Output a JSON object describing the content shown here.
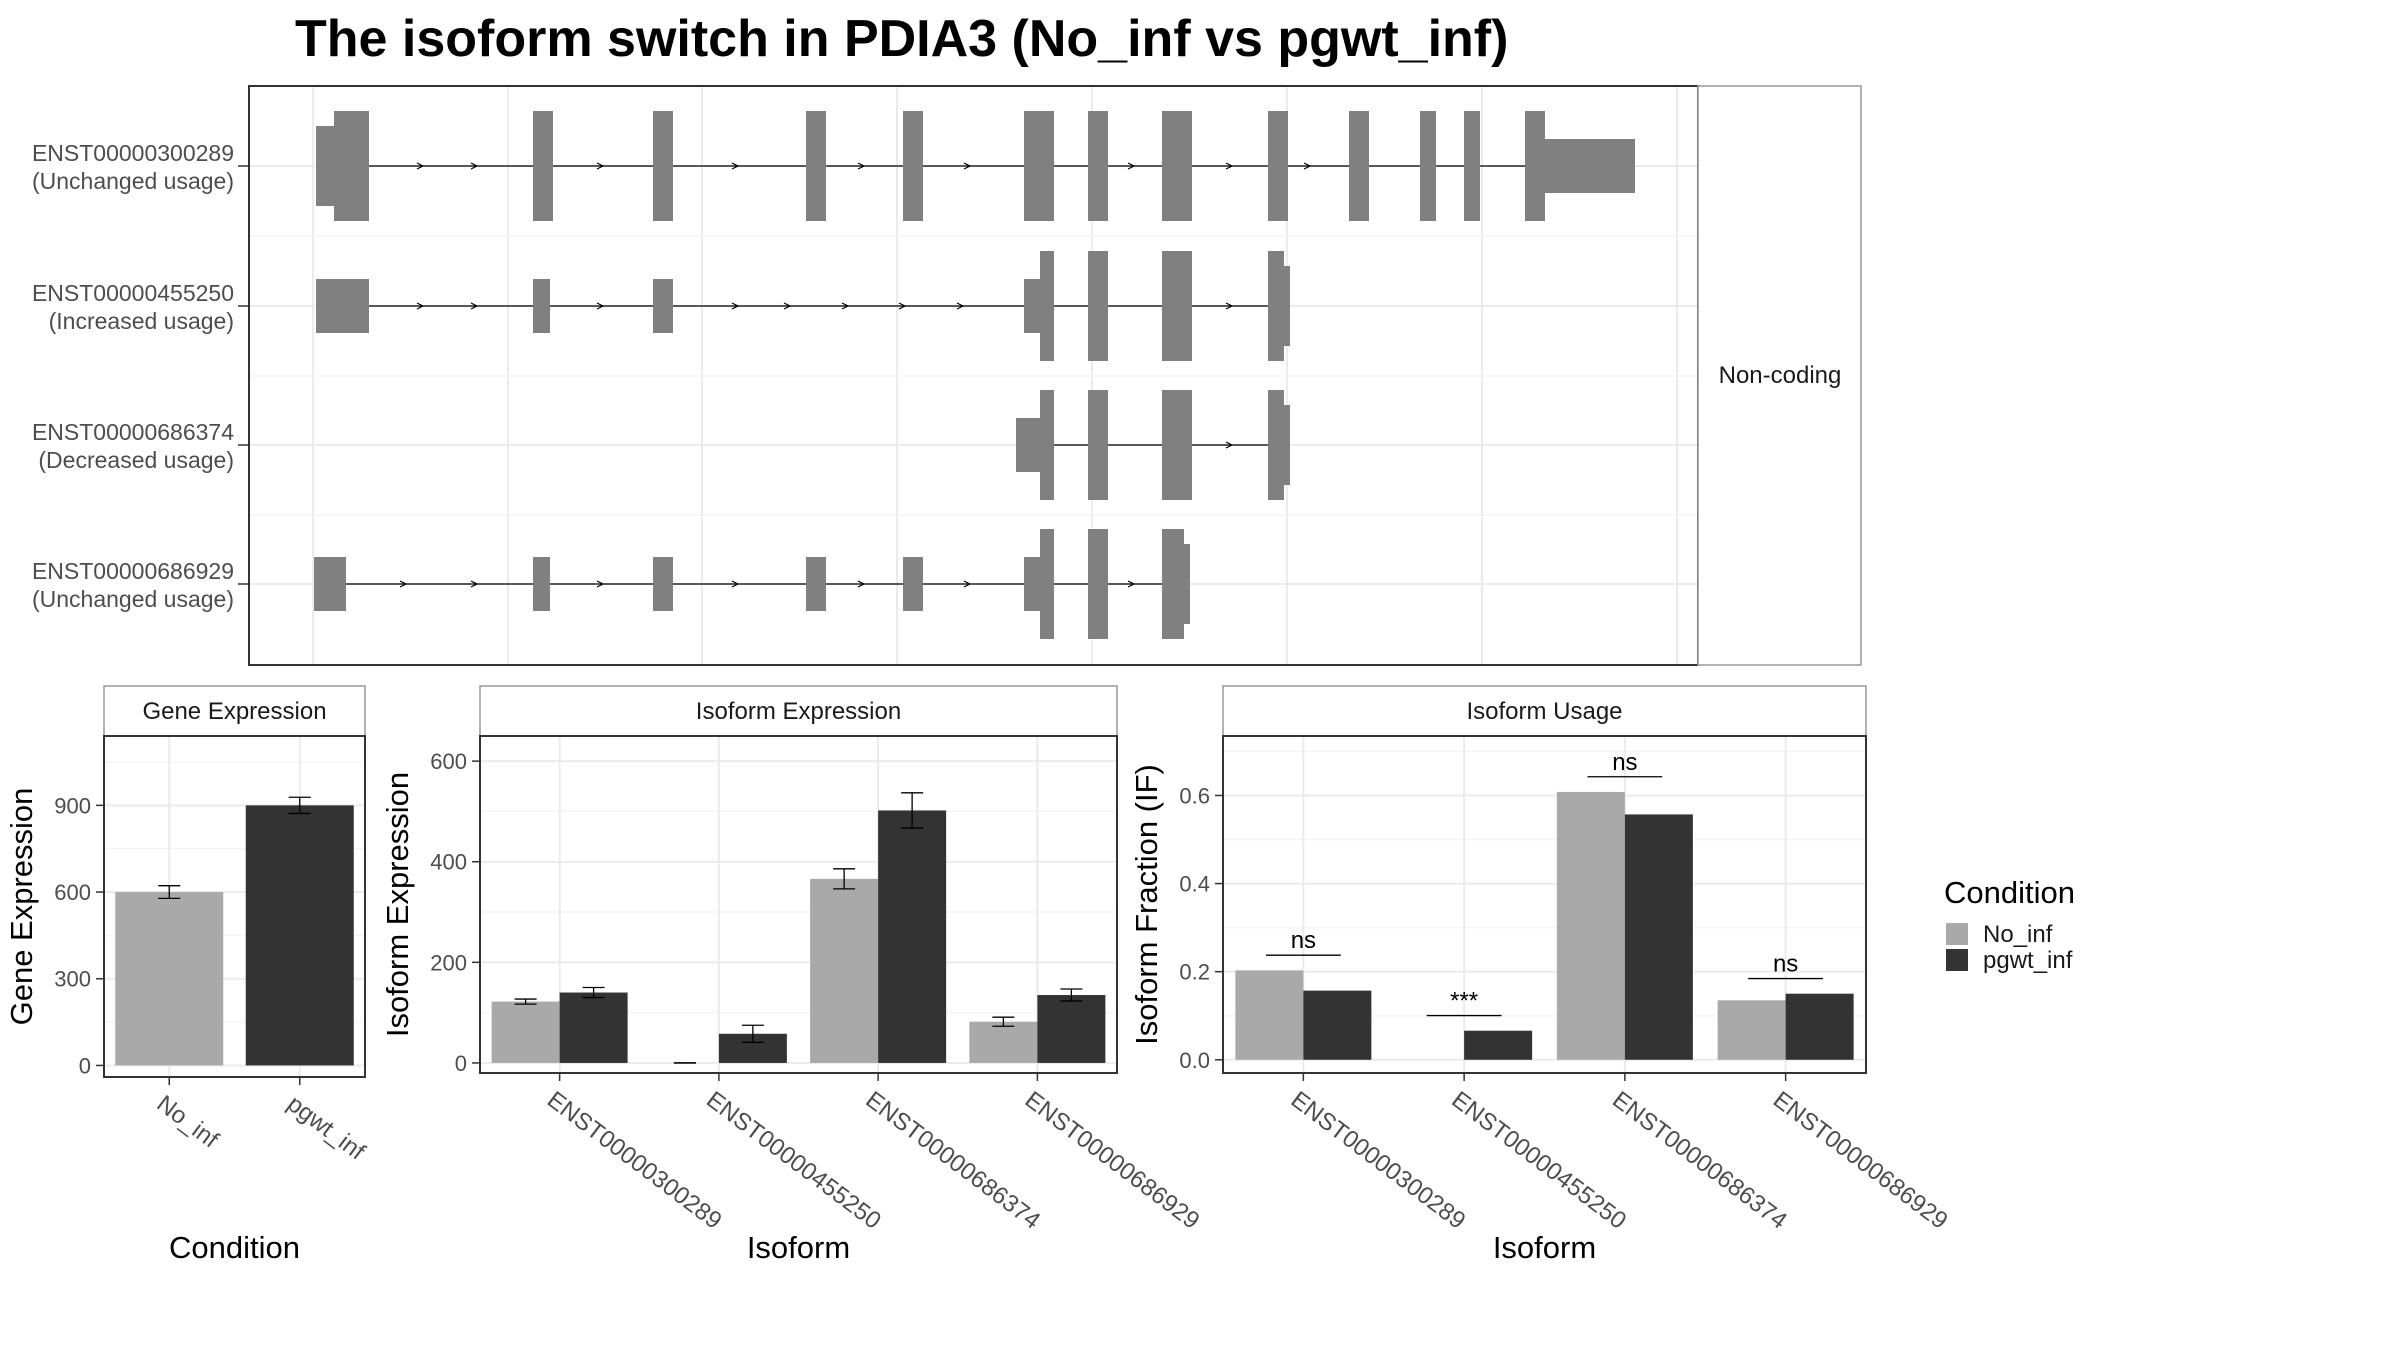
{
  "title": "The isoform switch in PDIA3 (No_inf vs pgwt_inf)",
  "colors": {
    "No_inf": "#a9a9a9",
    "pgwt_inf": "#333333",
    "exon": "#808080",
    "grid": "#ebebeb",
    "panel_border": "#333333",
    "strip_border": "#666666"
  },
  "legend": {
    "title": "Condition",
    "items": [
      {
        "label": "No_inf",
        "color": "#a9a9a9"
      },
      {
        "label": "pgwt_inf",
        "color": "#333333"
      }
    ]
  },
  "chart_data": [
    {
      "type": "gene_structure",
      "facet_label": "Non-coding",
      "transcripts": [
        {
          "id": "ENST00000300289",
          "status": "(Unchanged usage)"
        },
        {
          "id": "ENST00000455250",
          "status": "(Increased usage)"
        },
        {
          "id": "ENST00000686374",
          "status": "(Decreased usage)"
        },
        {
          "id": "ENST00000686929",
          "status": "(Unchanged usage)"
        }
      ]
    },
    {
      "type": "bar",
      "title": "Gene Expression",
      "xlabel": "Condition",
      "ylabel": "Gene Expression",
      "categories": [
        "No_inf",
        "pgwt_inf"
      ],
      "values": [
        600,
        900
      ],
      "errors": [
        22,
        28
      ],
      "ylim": [
        -40,
        1140
      ],
      "yticks": [
        0,
        300,
        600,
        900
      ]
    },
    {
      "type": "bar",
      "title": "Isoform Expression",
      "xlabel": "Isoform",
      "ylabel": "Isoform Expression",
      "categories": [
        "ENST00000300289",
        "ENST00000455250",
        "ENST00000686374",
        "ENST00000686929"
      ],
      "series": [
        {
          "name": "No_inf",
          "values": [
            122,
            0,
            366,
            82
          ],
          "errors": [
            5,
            0,
            20,
            9
          ]
        },
        {
          "name": "pgwt_inf",
          "values": [
            140,
            58,
            502,
            135
          ],
          "errors": [
            10,
            17,
            35,
            12
          ]
        }
      ],
      "ylim": [
        -20,
        650
      ],
      "yticks": [
        0,
        200,
        400,
        600
      ]
    },
    {
      "type": "bar",
      "title": "Isoform Usage",
      "xlabel": "Isoform",
      "ylabel": "Isoform Fraction (IF)",
      "categories": [
        "ENST00000300289",
        "ENST00000455250",
        "ENST00000686374",
        "ENST00000686929"
      ],
      "series": [
        {
          "name": "No_inf",
          "values": [
            0.203,
            0.0,
            0.608,
            0.135
          ]
        },
        {
          "name": "pgwt_inf",
          "values": [
            0.157,
            0.066,
            0.557,
            0.15
          ]
        }
      ],
      "significance": [
        "ns",
        "***",
        "ns",
        "ns"
      ],
      "ylim": [
        -0.03,
        0.735
      ],
      "yticks": [
        0.0,
        0.2,
        0.4,
        0.6
      ]
    }
  ]
}
